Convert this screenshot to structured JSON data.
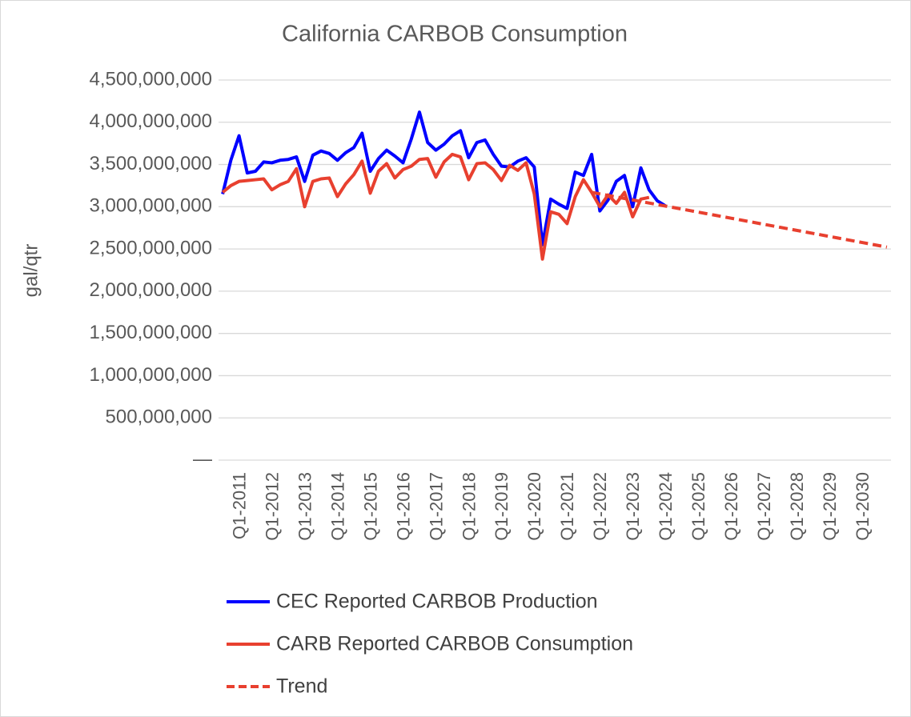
{
  "chart_data": {
    "type": "line",
    "title": "California CARBOB Consumption",
    "y_label": "gal/qtr",
    "categories": [
      null,
      null,
      "Q1-2011",
      null,
      null,
      null,
      "Q1-2012",
      null,
      null,
      null,
      "Q1-2013",
      null,
      null,
      null,
      "Q1-2014",
      null,
      null,
      null,
      "Q1-2015",
      null,
      null,
      null,
      "Q1-2016",
      null,
      null,
      null,
      "Q1-2017",
      null,
      null,
      null,
      "Q1-2018",
      null,
      null,
      null,
      "Q1-2019",
      null,
      null,
      null,
      "Q1-2020",
      null,
      null,
      null,
      "Q1-2021",
      null,
      null,
      null,
      "Q1-2022",
      null,
      null,
      null,
      "Q1-2023",
      null,
      null,
      null,
      "Q1-2024",
      null,
      null,
      null,
      "Q1-2025",
      null,
      null,
      null,
      "Q1-2026",
      null,
      null,
      null,
      "Q1-2027",
      null,
      null,
      null,
      "Q1-2028",
      null,
      null,
      null,
      "Q1-2029",
      null,
      null,
      null,
      "Q1-2030",
      null,
      null,
      null
    ],
    "series": [
      {
        "name": "CEC Reported CARBOB Production",
        "color": "#0000ff",
        "dashed": false,
        "values": [
          3150000000,
          3550000000,
          3840000000,
          3400000000,
          3420000000,
          3530000000,
          3520000000,
          3550000000,
          3560000000,
          3590000000,
          3300000000,
          3610000000,
          3660000000,
          3630000000,
          3550000000,
          3640000000,
          3700000000,
          3870000000,
          3420000000,
          3570000000,
          3670000000,
          3600000000,
          3520000000,
          3800000000,
          4120000000,
          3760000000,
          3670000000,
          3740000000,
          3840000000,
          3900000000,
          3580000000,
          3760000000,
          3790000000,
          3620000000,
          3480000000,
          3470000000,
          3540000000,
          3580000000,
          3470000000,
          2550000000,
          3090000000,
          3030000000,
          2980000000,
          3410000000,
          3370000000,
          3620000000,
          2950000000,
          3080000000,
          3300000000,
          3370000000,
          3000000000,
          3460000000,
          3200000000,
          3070000000,
          3010000000,
          null,
          null,
          null,
          null,
          null,
          null,
          null,
          null,
          null,
          null,
          null,
          null,
          null,
          null,
          null,
          null,
          null,
          null,
          null,
          null,
          null,
          null,
          null,
          null,
          null,
          null,
          null
        ]
      },
      {
        "name": "CARB Reported CARBOB Consumption",
        "color": "#e8402f",
        "dashed": false,
        "values": [
          3170000000,
          3250000000,
          3300000000,
          3310000000,
          3320000000,
          3330000000,
          3200000000,
          3260000000,
          3300000000,
          3450000000,
          3000000000,
          3300000000,
          3330000000,
          3340000000,
          3120000000,
          3270000000,
          3380000000,
          3540000000,
          3160000000,
          3420000000,
          3510000000,
          3340000000,
          3440000000,
          3480000000,
          3560000000,
          3570000000,
          3350000000,
          3530000000,
          3620000000,
          3590000000,
          3320000000,
          3510000000,
          3520000000,
          3440000000,
          3310000000,
          3490000000,
          3430000000,
          3520000000,
          3150000000,
          2380000000,
          2940000000,
          2910000000,
          2800000000,
          3120000000,
          3320000000,
          3170000000,
          3000000000,
          3140000000,
          3040000000,
          3170000000,
          2880000000,
          3090000000,
          3110000000,
          null,
          null,
          null,
          null,
          null,
          null,
          null,
          null,
          null,
          null,
          null,
          null,
          null,
          null,
          null,
          null,
          null,
          null,
          null,
          null,
          null,
          null,
          null,
          null,
          null,
          null,
          null,
          null,
          null
        ]
      },
      {
        "name": "Trend",
        "color": "#e8402f",
        "dashed": true,
        "values": [
          null,
          null,
          null,
          null,
          null,
          null,
          null,
          null,
          null,
          null,
          null,
          null,
          null,
          null,
          null,
          null,
          null,
          null,
          null,
          null,
          null,
          null,
          null,
          null,
          null,
          null,
          null,
          null,
          null,
          null,
          null,
          null,
          null,
          null,
          null,
          null,
          null,
          null,
          null,
          null,
          null,
          null,
          null,
          null,
          null,
          3170000000,
          3152000000,
          3134000000,
          3116000000,
          3098000000,
          3080000000,
          3062000000,
          3044000000,
          3026000000,
          3008000000,
          2990000000,
          2972000000,
          2954000000,
          2936000000,
          2918000000,
          2900000000,
          2882000000,
          2864000000,
          2846000000,
          2828000000,
          2810000000,
          2792000000,
          2774000000,
          2756000000,
          2738000000,
          2720000000,
          2702000000,
          2684000000,
          2666000000,
          2648000000,
          2630000000,
          2612000000,
          2594000000,
          2576000000,
          2558000000,
          2540000000,
          2522000000
        ]
      }
    ],
    "ylim": [
      0,
      4500000000
    ],
    "yticks": [
      {
        "value": 0,
        "label": "—"
      },
      {
        "value": 500000000,
        "label": "500,000,000"
      },
      {
        "value": 1000000000,
        "label": "1,000,000,000"
      },
      {
        "value": 1500000000,
        "label": "1,500,000,000"
      },
      {
        "value": 2000000000,
        "label": "2,000,000,000"
      },
      {
        "value": 2500000000,
        "label": "2,500,000,000"
      },
      {
        "value": 3000000000,
        "label": "3,000,000,000"
      },
      {
        "value": 3500000000,
        "label": "3,500,000,000"
      },
      {
        "value": 4000000000,
        "label": "4,000,000,000"
      },
      {
        "value": 4500000000,
        "label": "4,500,000,000"
      }
    ],
    "grid": true,
    "legend": "bottom"
  }
}
